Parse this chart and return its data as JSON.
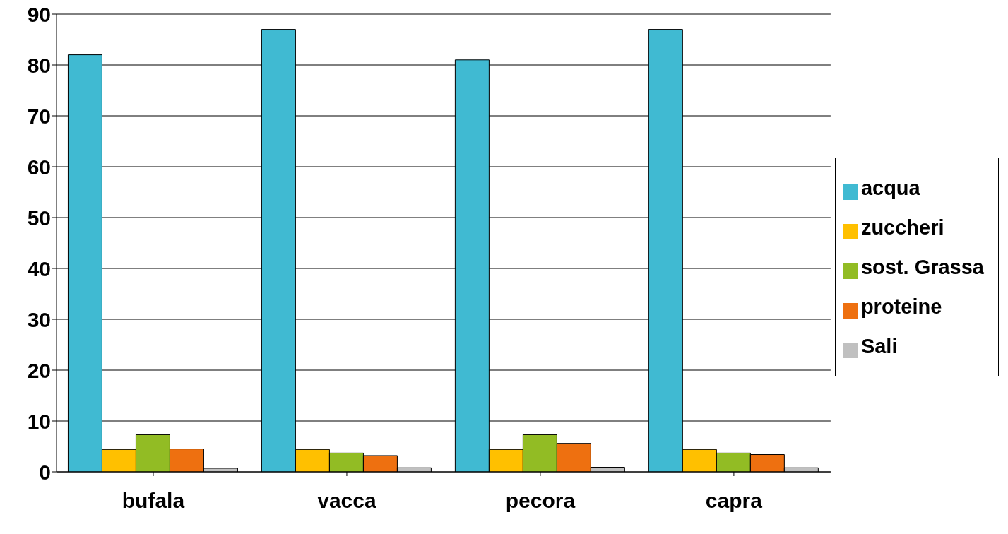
{
  "chart_data": {
    "type": "bar",
    "categories": [
      "bufala",
      "vacca",
      "pecora",
      "capra"
    ],
    "series": [
      {
        "name": "acqua",
        "color": "#40bad2",
        "values": [
          82,
          87,
          81,
          87
        ]
      },
      {
        "name": "zuccheri",
        "color": "#ffc000",
        "values": [
          4.4,
          4.4,
          4.4,
          4.4
        ]
      },
      {
        "name": "sost. Grassa",
        "color": "#92bc24",
        "values": [
          7.3,
          3.7,
          7.3,
          3.7
        ]
      },
      {
        "name": "proteine",
        "color": "#ee7010",
        "values": [
          4.5,
          3.2,
          5.6,
          3.4
        ]
      },
      {
        "name": "Sali",
        "color": "#c0c0c0",
        "values": [
          0.7,
          0.8,
          0.9,
          0.8
        ]
      }
    ],
    "ylim": [
      0,
      90
    ],
    "yticks": [
      0,
      10,
      20,
      30,
      40,
      50,
      60,
      70,
      80,
      90
    ],
    "grid": "y",
    "legend": "right"
  }
}
